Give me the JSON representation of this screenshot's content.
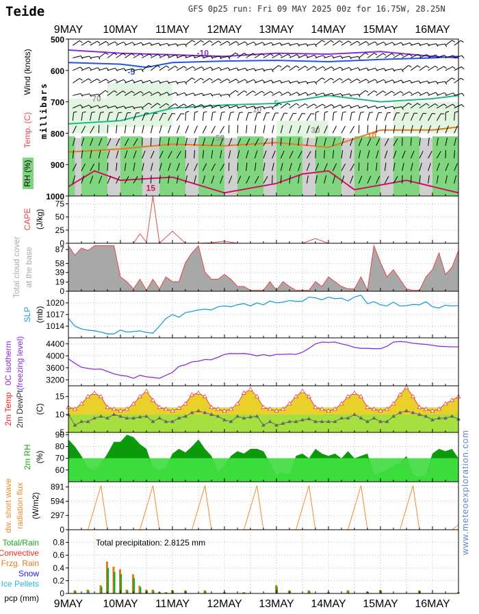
{
  "header": {
    "location": "Teide",
    "run_info": "GFS 0p25 run: Fri 09 MAY 2025 00z for 16.75W, 28.25N"
  },
  "dates": [
    "9MAY",
    "10MAY",
    "11MAY",
    "12MAY",
    "13MAY",
    "14MAY",
    "15MAY",
    "16MAY"
  ],
  "watermark": "www.meteoexploration.com",
  "colors": {
    "rh_green": "#7fd67f",
    "rh_light": "#d9f2d9",
    "cape": "#e8454b",
    "cloud": "#a8a8a8",
    "slp": "#1a9ee0",
    "freezing": "#8a2be2",
    "temp": "#e8454b",
    "dewpt": "#666666",
    "rh2m_dark": "#0b9a0b",
    "rh2m_light": "#3ddc3d",
    "sw": "#f08a2c",
    "rain": "#1aa51a",
    "conv": "#ff2020",
    "frzg": "#e07b20",
    "snow": "#2020e0",
    "pellets": "#20b8e0"
  },
  "chart_data": [
    {
      "id": "upper_air",
      "type": "area",
      "ylabel": "millibars",
      "ylim": [
        1000,
        500
      ],
      "yticks": [
        500,
        600,
        700,
        800,
        900,
        1000
      ],
      "side_labels": [
        "Wind (knots)",
        "Temp. (C)",
        "RH (%)"
      ],
      "isotherm_labels": [
        {
          "text": "-10",
          "color": "#8a2be2"
        },
        {
          "text": "-5",
          "color": "#2255dd"
        },
        {
          "text": "5",
          "color": "#1ab98a"
        },
        {
          "text": "10",
          "color": "#e07b20"
        },
        {
          "text": "15",
          "color": "#d01060"
        }
      ],
      "rh_labels": [
        "70",
        "50",
        "30",
        "10"
      ]
    },
    {
      "id": "cape",
      "type": "line",
      "ylabel": "CAPE (J/kg)",
      "ylim": [
        0,
        90
      ],
      "yticks": [
        0,
        25,
        50,
        75
      ],
      "x_hours": [
        0,
        6,
        12,
        18,
        24,
        30,
        33,
        36,
        39,
        42,
        48,
        54,
        60,
        66,
        72,
        78,
        84,
        90,
        96,
        102,
        108,
        114,
        120,
        126,
        132,
        138,
        144,
        150,
        156,
        162,
        168,
        174,
        180
      ],
      "values": [
        0,
        0,
        0,
        0,
        0,
        0,
        18,
        2,
        90,
        0,
        23,
        0,
        0,
        1,
        4,
        0,
        0,
        0,
        0,
        0,
        0,
        9,
        0,
        0,
        0,
        0,
        0,
        0,
        0,
        0,
        0,
        0,
        0
      ]
    },
    {
      "id": "cloud",
      "type": "area",
      "ylabel": "Total cloud cover at the base",
      "ylim": [
        0,
        100
      ],
      "yticks": [
        0,
        19,
        39,
        58,
        87
      ],
      "x_hours": [
        0,
        3,
        6,
        9,
        12,
        15,
        18,
        21,
        24,
        27,
        30,
        33,
        36,
        39,
        42,
        45,
        48,
        51,
        54,
        57,
        60,
        63,
        66,
        69,
        72,
        75,
        78,
        81,
        84,
        87,
        90,
        93,
        96,
        99,
        102,
        105,
        108,
        111,
        114,
        117,
        120,
        123,
        126,
        129,
        132,
        135,
        138,
        141,
        144,
        147,
        150,
        153,
        156,
        159,
        162,
        165,
        168,
        171,
        174,
        177,
        180
      ],
      "values": [
        95,
        75,
        90,
        85,
        95,
        95,
        95,
        95,
        30,
        20,
        5,
        25,
        2,
        25,
        5,
        30,
        20,
        20,
        60,
        80,
        95,
        40,
        25,
        25,
        35,
        25,
        10,
        10,
        2,
        2,
        2,
        20,
        2,
        20,
        10,
        2,
        2,
        2,
        20,
        10,
        30,
        20,
        10,
        5,
        5,
        30,
        2,
        95,
        60,
        30,
        45,
        25,
        5,
        2,
        2,
        30,
        45,
        80,
        35,
        50,
        85
      ]
    },
    {
      "id": "slp",
      "type": "line",
      "ylabel": "SLP (mb)",
      "ylim": [
        1011,
        1023
      ],
      "yticks": [
        1014,
        1017,
        1020
      ],
      "x_hours": [
        0,
        3,
        6,
        9,
        12,
        15,
        18,
        21,
        24,
        27,
        30,
        33,
        36,
        39,
        42,
        45,
        48,
        51,
        54,
        57,
        60,
        63,
        66,
        69,
        72,
        75,
        78,
        81,
        84,
        87,
        90,
        93,
        96,
        99,
        102,
        105,
        108,
        111,
        114,
        117,
        120,
        123,
        126,
        129,
        132,
        135,
        138,
        141,
        144,
        147,
        150,
        153,
        156,
        159,
        162,
        165,
        168,
        171,
        174,
        177,
        180
      ],
      "values": [
        1016,
        1014,
        1013.3,
        1013,
        1012.8,
        1012.5,
        1012,
        1012,
        1013,
        1012.5,
        1012.6,
        1012.8,
        1012.4,
        1012.2,
        1014,
        1016,
        1017,
        1016.3,
        1017.5,
        1017.8,
        1018.2,
        1018.4,
        1018.2,
        1019,
        1019.2,
        1019,
        1019.5,
        1019.8,
        1019.2,
        1020,
        1019.5,
        1020.5,
        1020,
        1020.2,
        1020.6,
        1020.4,
        1020.4,
        1021.5,
        1021.3,
        1020.8,
        1021.5,
        1021.1,
        1021.2,
        1020.5,
        1021.5,
        1022,
        1019.8,
        1020.3,
        1019.5,
        1019.2,
        1020.2,
        1019.2,
        1019.3,
        1019.6,
        1019.5,
        1020.3,
        1019,
        1018.7,
        1019.4,
        1019.2,
        1019.3
      ]
    },
    {
      "id": "freezing",
      "type": "line",
      "ylabel": "0C isotherm (freezing level)",
      "ylim": [
        3000,
        4600
      ],
      "yticks": [
        3200,
        3600,
        4000,
        4400
      ],
      "x_hours": [
        0,
        3,
        6,
        9,
        12,
        15,
        18,
        21,
        24,
        27,
        30,
        33,
        36,
        39,
        42,
        45,
        48,
        51,
        54,
        57,
        60,
        63,
        66,
        69,
        72,
        75,
        78,
        81,
        84,
        87,
        90,
        93,
        96,
        99,
        102,
        105,
        108,
        111,
        114,
        117,
        120,
        123,
        126,
        129,
        132,
        135,
        138,
        141,
        144,
        147,
        150,
        153,
        156,
        159,
        162,
        165,
        168,
        171,
        174,
        177,
        180
      ],
      "values": [
        3900,
        3750,
        3620,
        3580,
        3550,
        3560,
        3480,
        3400,
        3350,
        3320,
        3250,
        3350,
        3300,
        3280,
        3250,
        3350,
        3450,
        3650,
        3700,
        3800,
        3820,
        3880,
        3870,
        3950,
        4050,
        4080,
        4070,
        4080,
        4050,
        4000,
        4040,
        4000,
        4050,
        4050,
        4060,
        4050,
        4120,
        4250,
        4400,
        4460,
        4450,
        4460,
        4400,
        4350,
        4280,
        4250,
        4250,
        4240,
        4240,
        4320,
        4460,
        4480,
        4460,
        4420,
        4400,
        4380,
        4350,
        4320,
        4310,
        4300,
        4300
      ]
    },
    {
      "id": "temp2m",
      "type": "line",
      "ylabel": "(C)",
      "ylim": [
        5,
        18
      ],
      "yticks": [
        5,
        10,
        15
      ],
      "side_labels": [
        "2m Temp",
        "2m DewPt"
      ],
      "x_hours": [
        0,
        3,
        6,
        9,
        12,
        15,
        18,
        21,
        24,
        27,
        30,
        33,
        36,
        39,
        42,
        45,
        48,
        51,
        54,
        57,
        60,
        63,
        66,
        69,
        72,
        75,
        78,
        81,
        84,
        87,
        90,
        93,
        96,
        99,
        102,
        105,
        108,
        111,
        114,
        117,
        120,
        123,
        126,
        129,
        132,
        135,
        138,
        141,
        144,
        147,
        150,
        153,
        156,
        159,
        162,
        165,
        168,
        171,
        174,
        177,
        180
      ],
      "temp": [
        12,
        11.5,
        13,
        15,
        16,
        15,
        12,
        11.5,
        11,
        11.5,
        13,
        15,
        16.5,
        14,
        12,
        11.5,
        11,
        11.8,
        13,
        15.5,
        16,
        15,
        12,
        11.5,
        11,
        11.5,
        13,
        16,
        17,
        15,
        12,
        11.5,
        11,
        11.5,
        13,
        15,
        16.5,
        15,
        12,
        11.5,
        11,
        11.5,
        13,
        15,
        16,
        15,
        12,
        11.5,
        11,
        11.5,
        13,
        15.5,
        17.5,
        15,
        12,
        11.5,
        11,
        11.5,
        13,
        14,
        15
      ],
      "dewpt": [
        10,
        7,
        8,
        8,
        9,
        9.5,
        9,
        10,
        9.5,
        9,
        9,
        9.3,
        9.5,
        8,
        9,
        8,
        8,
        9,
        9.5,
        10.5,
        11,
        10.5,
        10,
        9.5,
        8.5,
        8,
        9.5,
        9,
        9.3,
        9.5,
        7,
        8,
        7,
        7.5,
        8,
        8,
        8.5,
        8.8,
        8,
        8,
        8,
        8,
        9,
        9,
        10,
        9,
        8,
        9,
        8,
        8,
        9.5,
        10.5,
        11,
        10.5,
        10,
        9.5,
        8.5,
        9,
        9,
        9.5,
        8.7
      ]
    },
    {
      "id": "rh2m",
      "type": "area",
      "ylabel": "2m RH (%)",
      "ylim": [
        50,
        92
      ],
      "yticks": [
        60,
        70,
        80,
        90
      ],
      "x_hours": [
        0,
        3,
        6,
        9,
        12,
        15,
        18,
        21,
        24,
        27,
        30,
        33,
        36,
        39,
        42,
        45,
        48,
        51,
        54,
        57,
        60,
        63,
        66,
        69,
        72,
        75,
        78,
        81,
        84,
        87,
        90,
        93,
        96,
        99,
        102,
        105,
        108,
        111,
        114,
        117,
        120,
        123,
        126,
        129,
        132,
        135,
        138,
        141,
        144,
        147,
        150,
        153,
        156,
        159,
        162,
        165,
        168,
        171,
        174,
        177,
        180
      ],
      "values": [
        86,
        80,
        72,
        62,
        60,
        65,
        74,
        84,
        84,
        90,
        88,
        82,
        78,
        62,
        60,
        62,
        74,
        78,
        75,
        80,
        86,
        78,
        72,
        58,
        64,
        72,
        76,
        74,
        78,
        78,
        76,
        66,
        56,
        58,
        56,
        72,
        74,
        70,
        78,
        74,
        72,
        74,
        70,
        76,
        70,
        72,
        74,
        56,
        58,
        60,
        64,
        66,
        72,
        56,
        54,
        56,
        74,
        78,
        76,
        78,
        70
      ]
    },
    {
      "id": "swrad",
      "type": "line",
      "ylabel": "dw. short wave radiation flux (W/m2)",
      "ylim": [
        0,
        1000
      ],
      "yticks": [
        0,
        297,
        594,
        891
      ],
      "x_hours": [
        0,
        6,
        9,
        15,
        18,
        24,
        30,
        33,
        39,
        42,
        48,
        54,
        57,
        63,
        66,
        72,
        78,
        81,
        87,
        90,
        96,
        102,
        105,
        111,
        114,
        120,
        126,
        129,
        135,
        138,
        144,
        150,
        153,
        159,
        162,
        168,
        174,
        177,
        180
      ],
      "values": [
        0,
        0,
        0,
        920,
        0,
        0,
        0,
        0,
        920,
        0,
        0,
        0,
        0,
        920,
        0,
        0,
        0,
        0,
        920,
        0,
        0,
        0,
        0,
        920,
        0,
        0,
        0,
        0,
        920,
        0,
        0,
        0,
        0,
        920,
        0,
        0,
        0,
        0,
        100
      ]
    },
    {
      "id": "precip",
      "type": "bar",
      "ylabel": "pcp (mm)",
      "ylim": [
        0,
        1.0
      ],
      "yticks": [
        0,
        0.2,
        0.4,
        0.6,
        0.8
      ],
      "note": "Total precipitation: 2.8125 mm",
      "legend": [
        "Total/Rain",
        "Convective",
        "Frzg. Rain",
        "Snow",
        "Ice Pellets"
      ],
      "x_hours": [
        3,
        9,
        15,
        18,
        21,
        24,
        27,
        30,
        33,
        36,
        39,
        42,
        45,
        48,
        54,
        63,
        72,
        81,
        96,
        102,
        111,
        120,
        129,
        138,
        144,
        162,
        180
      ],
      "values": [
        0.05,
        0.06,
        0.13,
        0.5,
        0.42,
        0.38,
        0.06,
        0.3,
        0.12,
        0.06,
        0.06,
        0.02,
        0.02,
        0.05,
        0.05,
        0.05,
        0.02,
        0.02,
        0.13,
        0.05,
        0.05,
        0.02,
        0.05,
        0.03,
        0.05,
        0.05,
        0.02
      ]
    }
  ]
}
